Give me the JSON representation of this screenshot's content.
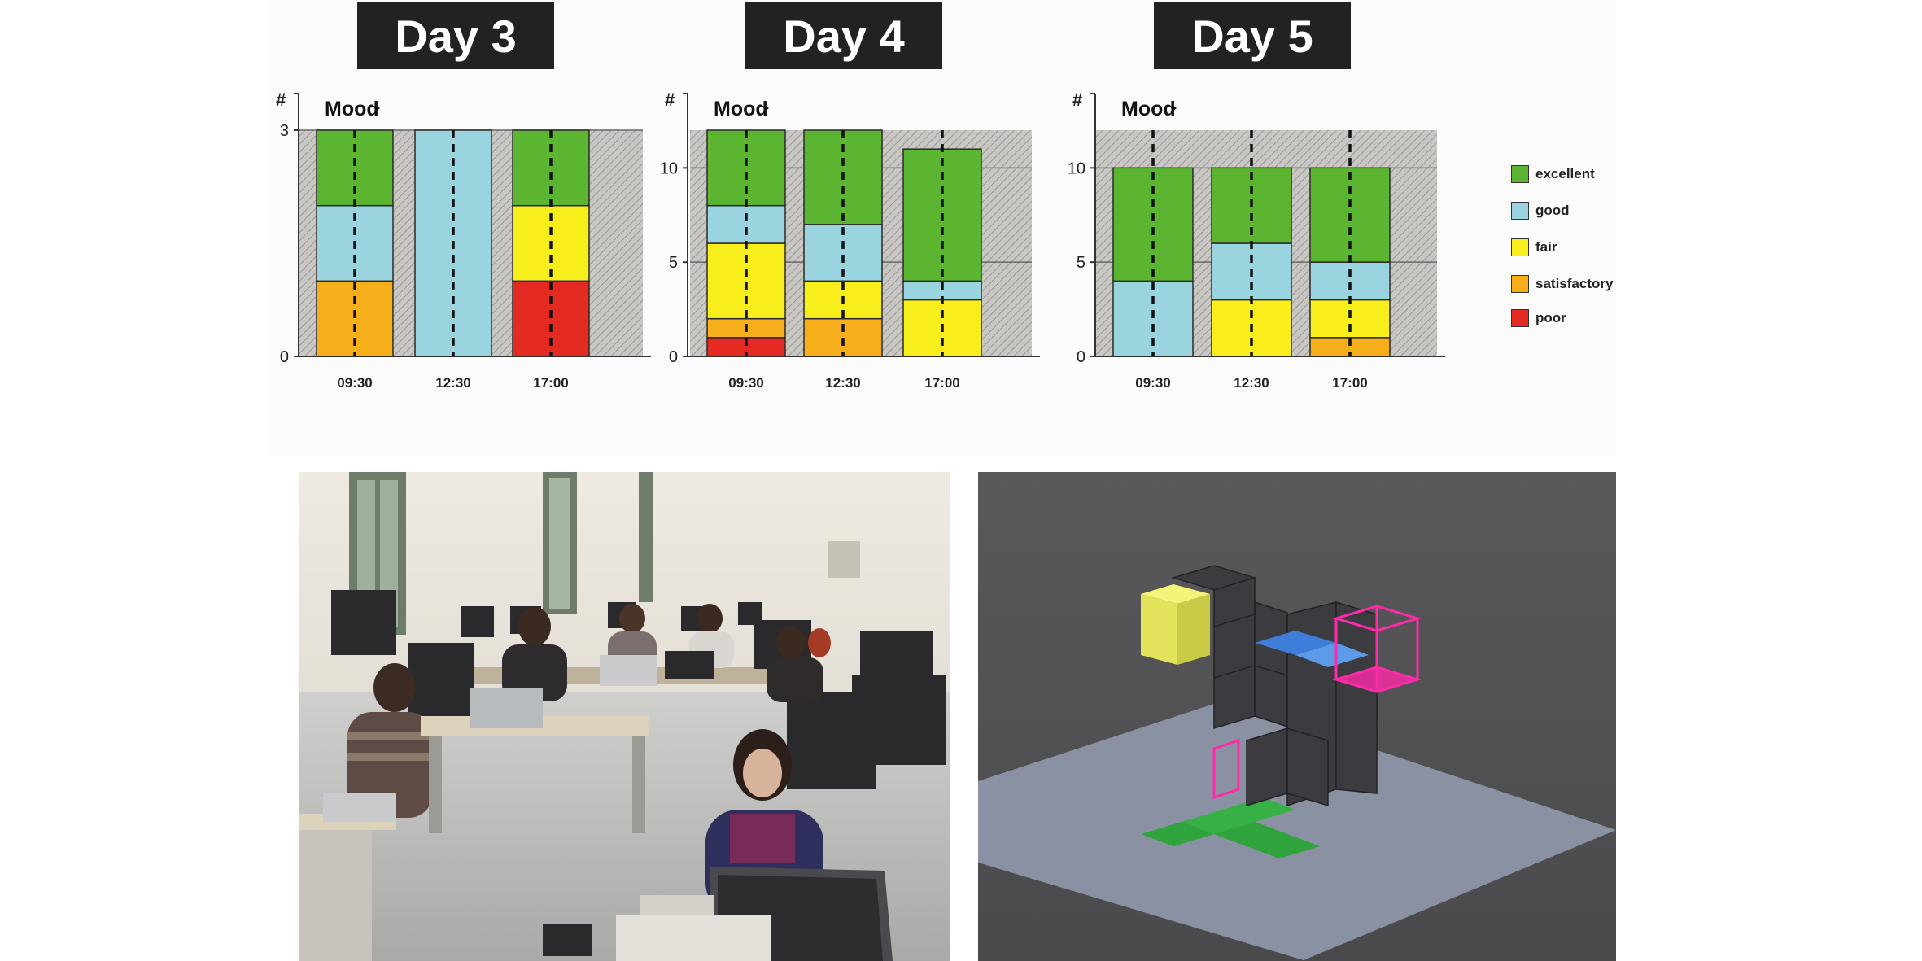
{
  "days": [
    "Day 3",
    "Day 4",
    "Day 5"
  ],
  "colors": {
    "excellent": "#5cb531",
    "good": "#9ad5df",
    "fair": "#f7ee1c",
    "satisfactory": "#f6ae1a",
    "poor": "#e52a24"
  },
  "legend": [
    {
      "key": "excellent",
      "label": "excellent"
    },
    {
      "key": "good",
      "label": "good"
    },
    {
      "key": "fair",
      "label": "fair"
    },
    {
      "key": "satisfactory",
      "label": "satisfactory"
    },
    {
      "key": "poor",
      "label": "poor"
    }
  ],
  "chart_data": [
    {
      "type": "bar",
      "stacked": true,
      "title": "Day 3",
      "subtitle": "Mood",
      "ylabel": "#",
      "ylim": [
        0,
        3
      ],
      "yticks": [
        0,
        3
      ],
      "categories": [
        "09:30",
        "12:30",
        "17:00"
      ],
      "series": [
        {
          "name": "poor",
          "values": [
            0,
            0,
            1
          ]
        },
        {
          "name": "satisfactory",
          "values": [
            1,
            0,
            0
          ]
        },
        {
          "name": "fair",
          "values": [
            0,
            0,
            1
          ]
        },
        {
          "name": "good",
          "values": [
            1,
            3,
            0
          ]
        },
        {
          "name": "excellent",
          "values": [
            1,
            0,
            1
          ]
        }
      ]
    },
    {
      "type": "bar",
      "stacked": true,
      "title": "Day 4",
      "subtitle": "Mood",
      "ylabel": "#",
      "ylim": [
        0,
        12
      ],
      "yticks": [
        0,
        5,
        10
      ],
      "categories": [
        "09:30",
        "12:30",
        "17:00"
      ],
      "series": [
        {
          "name": "poor",
          "values": [
            1,
            0,
            0
          ]
        },
        {
          "name": "satisfactory",
          "values": [
            1,
            2,
            0
          ]
        },
        {
          "name": "fair",
          "values": [
            4,
            2,
            3
          ]
        },
        {
          "name": "good",
          "values": [
            2,
            3,
            1
          ]
        },
        {
          "name": "excellent",
          "values": [
            4,
            5,
            7
          ]
        }
      ]
    },
    {
      "type": "bar",
      "stacked": true,
      "title": "Day 5",
      "subtitle": "Mood",
      "ylabel": "#",
      "ylim": [
        0,
        12
      ],
      "yticks": [
        0,
        5,
        10
      ],
      "categories": [
        "09:30",
        "12:30",
        "17:00"
      ],
      "series": [
        {
          "name": "poor",
          "values": [
            0,
            0,
            0
          ]
        },
        {
          "name": "satisfactory",
          "values": [
            0,
            0,
            1
          ]
        },
        {
          "name": "fair",
          "values": [
            0,
            3,
            2
          ]
        },
        {
          "name": "good",
          "values": [
            4,
            3,
            2
          ]
        },
        {
          "name": "excellent",
          "values": [
            6,
            4,
            5
          ]
        }
      ]
    }
  ]
}
